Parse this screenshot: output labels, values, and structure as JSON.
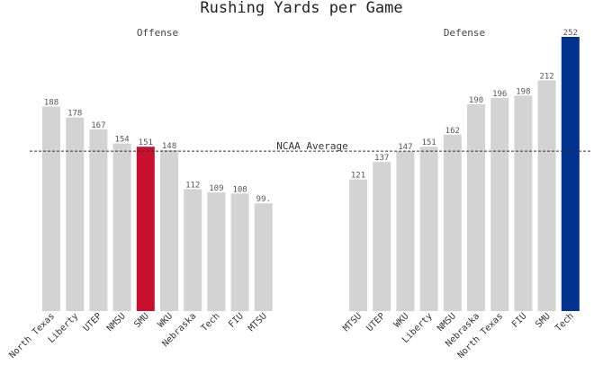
{
  "chart_data": {
    "type": "bar",
    "title": "Rushing Yards per Game",
    "reference_line": {
      "label": "NCAA Average",
      "value": 147
    },
    "ylim": [
      0,
      260
    ],
    "grid": false,
    "panels": [
      {
        "title": "Offense",
        "categories": [
          "North Texas",
          "Liberty",
          "UTEP",
          "NMSU",
          "SMU",
          "WKU",
          "Nebraska",
          "Tech",
          "FIU",
          "MTSU"
        ],
        "values": [
          188,
          178,
          167,
          154,
          151,
          148,
          112,
          109,
          108,
          99
        ],
        "value_labels": [
          "188",
          "178",
          "167",
          "154",
          "151",
          "148",
          "112",
          "109",
          "108",
          "99."
        ],
        "highlight": "SMU",
        "highlight_color": "#c8102e"
      },
      {
        "title": "Defense",
        "categories": [
          "MTSU",
          "UTEP",
          "WKU",
          "Liberty",
          "NMSU",
          "Nebraska",
          "North Texas",
          "FIU",
          "SMU",
          "Tech"
        ],
        "values": [
          121,
          137,
          147,
          151,
          162,
          190,
          196,
          198,
          212,
          252
        ],
        "value_labels": [
          "121",
          "137",
          "147",
          "151",
          "162",
          "190",
          "196",
          "198",
          "212",
          "252"
        ],
        "highlight": "Tech",
        "highlight_color": "#00338d"
      }
    ],
    "colors": {
      "bar": "#d3d3d3",
      "reference_line": "#333333"
    }
  }
}
